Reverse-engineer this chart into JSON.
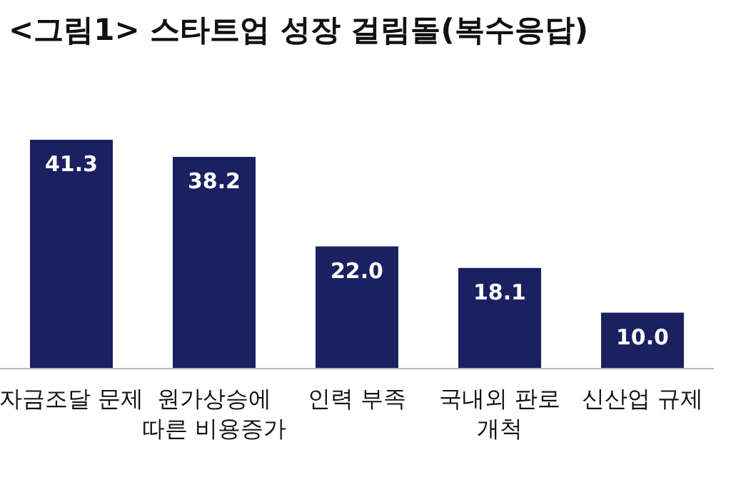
{
  "chart_data": {
    "type": "bar",
    "title": "<그림1> 스타트업 성장 걸림돌(복수응답)",
    "categories": [
      "자금조달 문제",
      "원가상승에 따른 비용증가",
      "인력 부족",
      "국내외 판로 개척",
      "신산업 규제"
    ],
    "values": [
      41.3,
      38.2,
      22.0,
      18.1,
      10.0
    ],
    "value_labels": [
      "41.3",
      "38.2",
      "22.0",
      "18.1",
      "10.0"
    ],
    "color": "#1b2160"
  }
}
